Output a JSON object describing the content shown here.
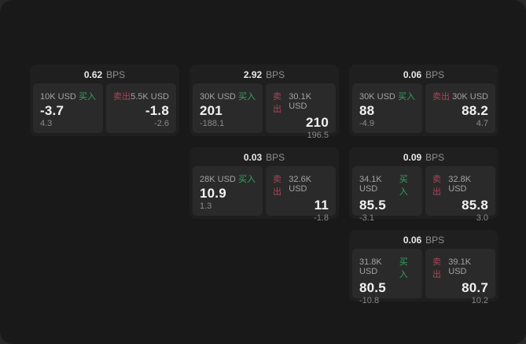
{
  "unit": "BPS",
  "labels": {
    "buy": "买入",
    "sell": "卖出"
  },
  "colors": {
    "buy": "#35a25f",
    "sell": "#ad4459",
    "panel": "#191919",
    "card": "#1f1f1f",
    "quote": "#2a2a2a"
  },
  "cards": [
    {
      "spread": "0.62",
      "buy": {
        "size": "10K USD",
        "value": "-3.7",
        "delta": "4.3"
      },
      "sell": {
        "size": "5.5K USD",
        "value": "-1.8",
        "delta": "-2.6"
      }
    },
    {
      "spread": "2.92",
      "buy": {
        "size": "30K USD",
        "value": "201",
        "delta": "-188.1"
      },
      "sell": {
        "size": "30.1K USD",
        "value": "210",
        "delta": "196.5"
      }
    },
    {
      "spread": "0.06",
      "buy": {
        "size": "30K USD",
        "value": "88",
        "delta": "-4.9"
      },
      "sell": {
        "size": "30K USD",
        "value": "88.2",
        "delta": "4.7"
      }
    },
    {
      "spread": "0.03",
      "buy": {
        "size": "28K USD",
        "value": "10.9",
        "delta": "1.3"
      },
      "sell": {
        "size": "32.6K USD",
        "value": "11",
        "delta": "-1.8"
      }
    },
    {
      "spread": "0.09",
      "buy": {
        "size": "34.1K USD",
        "value": "85.5",
        "delta": "-3.1"
      },
      "sell": {
        "size": "32.8K USD",
        "value": "85.8",
        "delta": "3.0"
      }
    },
    {
      "spread": "0.06",
      "buy": {
        "size": "31.8K USD",
        "value": "80.5",
        "delta": "-10.8"
      },
      "sell": {
        "size": "39.1K USD",
        "value": "80.7",
        "delta": "10.2"
      }
    }
  ]
}
